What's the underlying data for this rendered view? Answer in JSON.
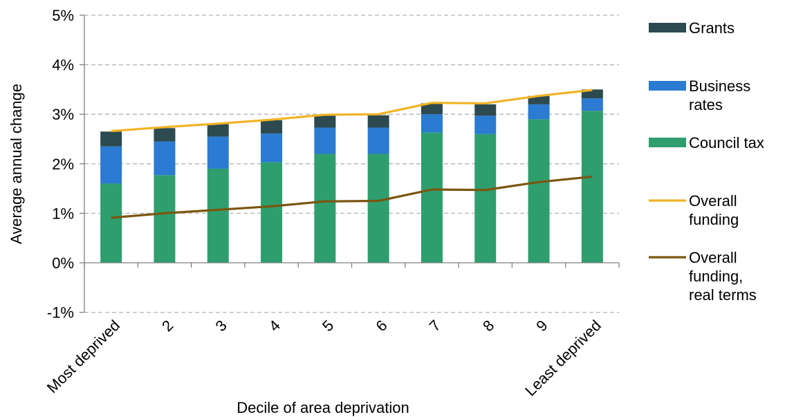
{
  "chart_data": {
    "type": "bar",
    "stacked": true,
    "title": "",
    "xlabel": "Decile of area deprivation",
    "ylabel": "Average annual change",
    "ylim": [
      -1,
      5
    ],
    "yticks": [
      "-1%",
      "0%",
      "1%",
      "2%",
      "3%",
      "4%",
      "5%"
    ],
    "categories": [
      "Most deprived",
      "2",
      "3",
      "4",
      "5",
      "6",
      "7",
      "8",
      "9",
      "Least deprived"
    ],
    "grid": "horizontal dashed",
    "legend_position": "right",
    "series": [
      {
        "name": "Council tax",
        "kind": "bar",
        "color": "#2e9e6f",
        "values": [
          1.6,
          1.77,
          1.9,
          2.03,
          2.2,
          2.2,
          2.63,
          2.6,
          2.9,
          3.07
        ]
      },
      {
        "name": "Business rates",
        "kind": "bar",
        "color": "#2a7bd1",
        "values": [
          0.75,
          0.68,
          0.65,
          0.58,
          0.53,
          0.53,
          0.37,
          0.37,
          0.3,
          0.25
        ]
      },
      {
        "name": "Grants",
        "kind": "bar",
        "color": "#2c4a4f",
        "values": [
          0.3,
          0.27,
          0.25,
          0.27,
          0.24,
          0.25,
          0.22,
          0.23,
          0.17,
          0.18
        ]
      },
      {
        "name": "Overall funding",
        "kind": "line",
        "color": "#f0b323",
        "values": [
          2.66,
          2.74,
          2.81,
          2.89,
          2.99,
          3.0,
          3.23,
          3.22,
          3.37,
          3.49
        ]
      },
      {
        "name": "Overall funding, real terms",
        "kind": "line",
        "color": "#7a5610",
        "values": [
          0.91,
          1.0,
          1.07,
          1.14,
          1.24,
          1.25,
          1.48,
          1.47,
          1.63,
          1.74
        ]
      }
    ],
    "legend": [
      {
        "lines": [
          "Grants"
        ],
        "color": "#2c4a4f",
        "kind": "bar"
      },
      {
        "lines": [
          "Business",
          "rates"
        ],
        "color": "#2a7bd1",
        "kind": "bar"
      },
      {
        "lines": [
          "Council tax"
        ],
        "color": "#2e9e6f",
        "kind": "bar"
      },
      {
        "lines": [
          "Overall",
          "funding"
        ],
        "color": "#f0b323",
        "kind": "line"
      },
      {
        "lines": [
          "Overall",
          "funding,",
          "real terms"
        ],
        "color": "#7a5610",
        "kind": "line"
      }
    ]
  }
}
